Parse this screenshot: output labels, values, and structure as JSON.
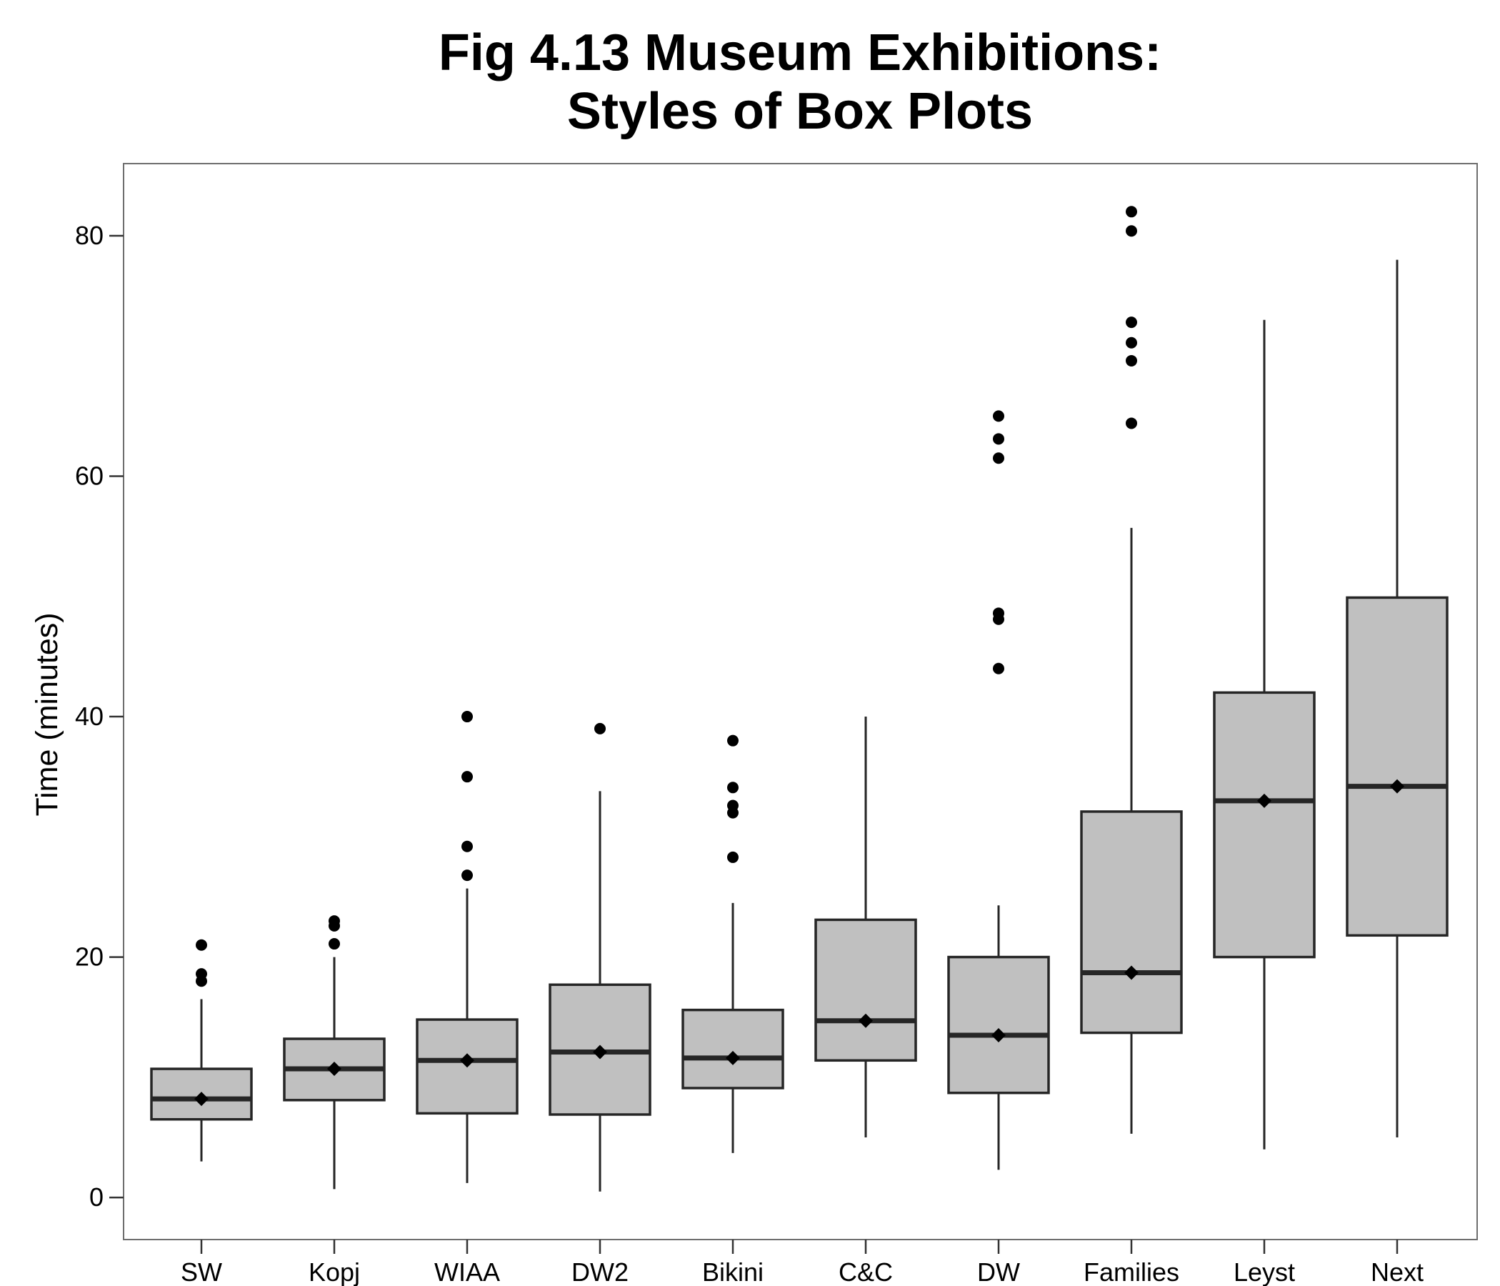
{
  "chart_data": {
    "type": "box",
    "title_lines": [
      "Fig 4.13 Museum Exhibitions:",
      "Styles of Box Plots"
    ],
    "xlabel": "",
    "ylabel": "Time (minutes)",
    "ylim": [
      -3.5,
      86
    ],
    "yticks": [
      0,
      20,
      40,
      60,
      80
    ],
    "grid": false,
    "legend": "none",
    "colors": {
      "box_fill": "#c0c0c0",
      "stroke": "#262626",
      "outlier": "#000000"
    },
    "categories": [
      "SW",
      "Kopj",
      "WIAA",
      "DW2",
      "Bikini",
      "C&C",
      "DW",
      "Families",
      "Leyst",
      "Next"
    ],
    "boxes": [
      {
        "name": "SW",
        "whisker_low": 3,
        "q1": 6.5,
        "median": 8.2,
        "q3": 10.7,
        "whisker_high": 16.5,
        "mean": 8.2,
        "outliers": [
          18,
          18.6,
          21
        ]
      },
      {
        "name": "Kopj",
        "whisker_low": 0.7,
        "q1": 8.1,
        "median": 10.7,
        "q3": 13.2,
        "whisker_high": 20,
        "mean": 10.7,
        "outliers": [
          21.1,
          22.6,
          23
        ]
      },
      {
        "name": "WIAA",
        "whisker_low": 1.2,
        "q1": 7,
        "median": 11.4,
        "q3": 14.8,
        "whisker_high": 25.7,
        "mean": 11.4,
        "outliers": [
          26.8,
          29.2,
          35,
          40
        ]
      },
      {
        "name": "DW2",
        "whisker_low": 0.5,
        "q1": 6.9,
        "median": 12.1,
        "q3": 17.7,
        "whisker_high": 33.8,
        "mean": 12.1,
        "outliers": [
          39
        ]
      },
      {
        "name": "Bikini",
        "whisker_low": 3.7,
        "q1": 9.1,
        "median": 11.6,
        "q3": 15.6,
        "whisker_high": 24.5,
        "mean": 11.6,
        "outliers": [
          28.3,
          32,
          32.6,
          34.1,
          38
        ]
      },
      {
        "name": "C&C",
        "whisker_low": 5,
        "q1": 11.4,
        "median": 14.7,
        "q3": 23.1,
        "whisker_high": 40,
        "mean": 14.7,
        "outliers": []
      },
      {
        "name": "DW",
        "whisker_low": 2.3,
        "q1": 8.7,
        "median": 13.5,
        "q3": 20,
        "whisker_high": 24.3,
        "mean": 13.5,
        "outliers": [
          44,
          48.1,
          48.6,
          61.5,
          63.1,
          65
        ]
      },
      {
        "name": "Families",
        "whisker_low": 5.3,
        "q1": 13.7,
        "median": 18.7,
        "q3": 32.1,
        "whisker_high": 55.7,
        "mean": 18.7,
        "outliers": [
          64.4,
          69.6,
          71.1,
          72.8,
          80.4,
          82
        ]
      },
      {
        "name": "Leyst",
        "whisker_low": 4,
        "q1": 20,
        "median": 33,
        "q3": 42,
        "whisker_high": 73,
        "mean": 33,
        "outliers": []
      },
      {
        "name": "Next",
        "whisker_low": 5,
        "q1": 21.8,
        "median": 34.2,
        "q3": 49.9,
        "whisker_high": 78,
        "mean": 34.2,
        "outliers": []
      }
    ]
  }
}
